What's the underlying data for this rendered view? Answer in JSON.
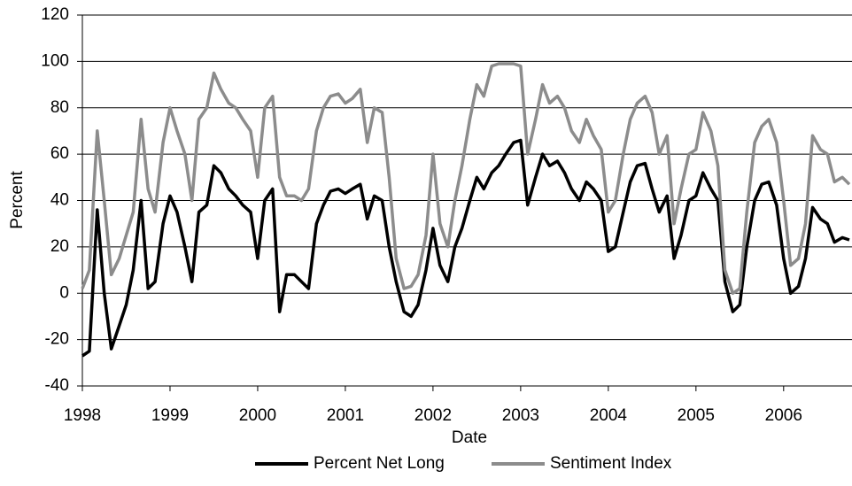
{
  "chart_data": {
    "type": "line",
    "x_label": "Date",
    "y_label": "Percent",
    "x": [
      1998,
      1998.08,
      1998.17,
      1998.25,
      1998.33,
      1998.42,
      1998.5,
      1998.58,
      1998.67,
      1998.75,
      1998.83,
      1998.92,
      1999,
      1999.08,
      1999.17,
      1999.25,
      1999.33,
      1999.42,
      1999.5,
      1999.58,
      1999.67,
      1999.75,
      1999.83,
      1999.92,
      2000,
      2000.08,
      2000.17,
      2000.25,
      2000.33,
      2000.42,
      2000.5,
      2000.58,
      2000.67,
      2000.75,
      2000.83,
      2000.92,
      2001,
      2001.08,
      2001.17,
      2001.25,
      2001.33,
      2001.42,
      2001.5,
      2001.58,
      2001.67,
      2001.75,
      2001.83,
      2001.92,
      2002,
      2002.08,
      2002.17,
      2002.25,
      2002.33,
      2002.42,
      2002.5,
      2002.58,
      2002.67,
      2002.75,
      2002.83,
      2002.92,
      2003,
      2003.08,
      2003.17,
      2003.25,
      2003.33,
      2003.42,
      2003.5,
      2003.58,
      2003.67,
      2003.75,
      2003.83,
      2003.92,
      2004,
      2004.08,
      2004.17,
      2004.25,
      2004.33,
      2004.42,
      2004.5,
      2004.58,
      2004.67,
      2004.75,
      2004.83,
      2004.92,
      2005,
      2005.08,
      2005.17,
      2005.25,
      2005.33,
      2005.42,
      2005.5,
      2005.58,
      2005.67,
      2005.75,
      2005.83,
      2005.92,
      2006,
      2006.08,
      2006.17,
      2006.25,
      2006.33,
      2006.42,
      2006.5,
      2006.58,
      2006.67,
      2006.75
    ],
    "series": [
      {
        "name": "Percent Net Long",
        "color": "#000000",
        "values": [
          -27,
          -25,
          36,
          0,
          -24,
          -14,
          -5,
          10,
          40,
          2,
          5,
          30,
          42,
          35,
          20,
          5,
          35,
          38,
          55,
          52,
          45,
          42,
          38,
          35,
          15,
          40,
          45,
          -8,
          8,
          8,
          5,
          2,
          30,
          38,
          44,
          45,
          43,
          45,
          47,
          32,
          42,
          40,
          20,
          5,
          -8,
          -10,
          -5,
          10,
          28,
          12,
          5,
          20,
          28,
          40,
          50,
          45,
          52,
          55,
          60,
          65,
          66,
          38,
          50,
          60,
          55,
          57,
          52,
          45,
          40,
          48,
          45,
          40,
          18,
          20,
          35,
          48,
          55,
          56,
          45,
          35,
          42,
          15,
          25,
          40,
          42,
          52,
          45,
          40,
          5,
          -8,
          -5,
          20,
          40,
          47,
          48,
          38,
          15,
          0,
          3,
          15,
          37,
          32,
          30,
          22,
          24,
          23
        ]
      },
      {
        "name": "Sentiment Index",
        "color": "#8c8c8c",
        "values": [
          2,
          10,
          70,
          40,
          8,
          15,
          25,
          35,
          75,
          45,
          35,
          65,
          80,
          70,
          60,
          40,
          75,
          80,
          95,
          88,
          82,
          80,
          75,
          70,
          50,
          80,
          85,
          50,
          42,
          42,
          40,
          45,
          70,
          80,
          85,
          86,
          82,
          84,
          88,
          65,
          80,
          78,
          50,
          15,
          2,
          3,
          8,
          25,
          60,
          30,
          20,
          40,
          55,
          75,
          90,
          85,
          98,
          99,
          99,
          99,
          98,
          60,
          75,
          90,
          82,
          85,
          80,
          70,
          65,
          75,
          68,
          62,
          35,
          40,
          60,
          75,
          82,
          85,
          78,
          60,
          68,
          30,
          45,
          60,
          62,
          78,
          70,
          55,
          10,
          0,
          2,
          35,
          65,
          72,
          75,
          65,
          40,
          12,
          15,
          30,
          68,
          62,
          60,
          48,
          50,
          47
        ]
      }
    ],
    "xlim": [
      1998,
      2006.78
    ],
    "xticks": [
      1998,
      1999,
      2000,
      2001,
      2002,
      2003,
      2004,
      2005,
      2006
    ],
    "ylim": [
      -40,
      120
    ],
    "yticks": [
      -40,
      -20,
      0,
      20,
      40,
      60,
      80,
      100,
      120
    ],
    "grid": true,
    "legend": "bottom"
  }
}
